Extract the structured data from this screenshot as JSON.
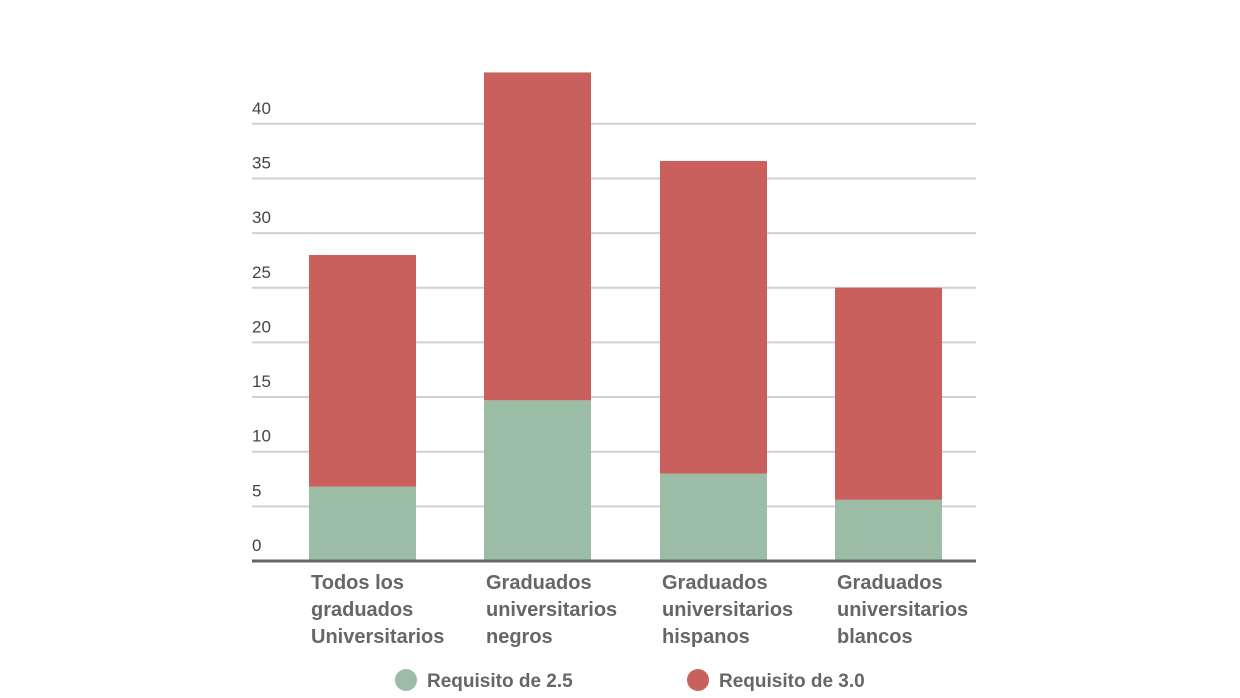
{
  "chart_data": {
    "type": "bar",
    "stacked": true,
    "categories": [
      "Todos los graduados Universitarios",
      "Graduados universitarios negros",
      "Graduados universitarios hispanos",
      "Graduados universitarios blancos"
    ],
    "category_lines": [
      [
        "Todos los",
        "graduados",
        "Universitarios"
      ],
      [
        "Graduados",
        "universitarios",
        "negros"
      ],
      [
        "Graduados",
        "universitarios",
        "hispanos"
      ],
      [
        "Graduados",
        "universitarios",
        "blancos"
      ]
    ],
    "series": [
      {
        "name": "Requisito de 2.5",
        "color": "#9bbda5",
        "values": [
          6.8,
          14.7,
          8.0,
          5.6
        ]
      },
      {
        "name": "Requisito de 3.0",
        "color": "#c9605d",
        "values": [
          21.2,
          30.0,
          28.6,
          19.4
        ]
      }
    ],
    "yticks": [
      0,
      5,
      10,
      15,
      20,
      25,
      30,
      35,
      40
    ],
    "ylim": [
      0,
      45
    ],
    "grid": true,
    "legend": "bottom",
    "title": "",
    "xlabel": "",
    "ylabel": ""
  }
}
